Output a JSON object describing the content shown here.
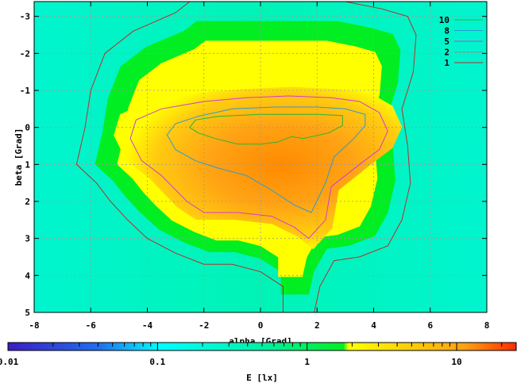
{
  "chart_data": {
    "type": "heatmap",
    "title": "",
    "xlabel": "alpha [Grad]",
    "ylabel": "beta [Grad]",
    "colorbar_label": "E [lx]",
    "xlim": [
      -8,
      8
    ],
    "ylim": [
      -3.4,
      5
    ],
    "y_inverted": true,
    "grid": true,
    "legend_placement": "top-right",
    "x_ticks": [
      "-8",
      "-6",
      "-4",
      "-2",
      "0",
      "2",
      "4",
      "6",
      "8"
    ],
    "y_ticks": [
      "-3",
      "-2",
      "-1",
      "0",
      "1",
      "2",
      "3",
      "4",
      "5"
    ],
    "colorbar_ticks": [
      "0.01",
      "0.1",
      "1",
      "10"
    ],
    "colorbar_range": [
      0.01,
      25
    ],
    "colorbar_log_scale": true,
    "palette": [
      "#3c1dc2",
      "#1f6ff0",
      "#00ffff",
      "#00f0a6",
      "#00ee22",
      "#ffff00",
      "#ffa010",
      "#ff2a00"
    ],
    "contours": [
      {
        "level": "10",
        "color": "#22b833",
        "points": [
          [
            -2.5,
            0
          ],
          [
            -2.3,
            -0.2
          ],
          [
            -1.5,
            -0.3
          ],
          [
            0,
            -0.35
          ],
          [
            1,
            -0.35
          ],
          [
            2,
            -0.35
          ],
          [
            2.9,
            -0.32
          ],
          [
            2.9,
            -0.05
          ],
          [
            2.4,
            0.15
          ],
          [
            1.5,
            0.3
          ],
          [
            1.1,
            0.25
          ],
          [
            0.6,
            0.4
          ],
          [
            0,
            0.45
          ],
          [
            -0.8,
            0.45
          ],
          [
            -1.6,
            0.3
          ],
          [
            -2.2,
            0.15
          ],
          [
            -2.5,
            0
          ]
        ]
      },
      {
        "level": "8",
        "color": "#2a9bd1",
        "points": [
          [
            -3.3,
            0.2
          ],
          [
            -3,
            -0.1
          ],
          [
            -2.2,
            -0.3
          ],
          [
            -1,
            -0.5
          ],
          [
            0.5,
            -0.55
          ],
          [
            2,
            -0.55
          ],
          [
            3,
            -0.5
          ],
          [
            3.7,
            -0.35
          ],
          [
            3.7,
            -0.05
          ],
          [
            3.3,
            0.3
          ],
          [
            2.6,
            0.8
          ],
          [
            2.3,
            1.5
          ],
          [
            1.8,
            2.3
          ],
          [
            1.2,
            2.1
          ],
          [
            0.4,
            1.7
          ],
          [
            -0.5,
            1.3
          ],
          [
            -1.5,
            1.1
          ],
          [
            -2.3,
            0.9
          ],
          [
            -3,
            0.6
          ],
          [
            -3.3,
            0.2
          ]
        ]
      },
      {
        "level": "5",
        "color": "#d23ad2",
        "points": [
          [
            -4.6,
            0.3
          ],
          [
            -4.4,
            -0.2
          ],
          [
            -3.5,
            -0.5
          ],
          [
            -2,
            -0.7
          ],
          [
            -0.5,
            -0.8
          ],
          [
            1,
            -0.85
          ],
          [
            2.5,
            -0.8
          ],
          [
            3.5,
            -0.7
          ],
          [
            4.2,
            -0.4
          ],
          [
            4.5,
            0.1
          ],
          [
            4.2,
            0.6
          ],
          [
            3.5,
            1
          ],
          [
            2.5,
            1.6
          ],
          [
            2.3,
            2.5
          ],
          [
            1.7,
            3
          ],
          [
            1.2,
            2.7
          ],
          [
            0.4,
            2.4
          ],
          [
            -0.8,
            2.3
          ],
          [
            -2,
            2.3
          ],
          [
            -2.6,
            2
          ],
          [
            -3.5,
            1.3
          ],
          [
            -4.2,
            0.9
          ],
          [
            -4.6,
            0.3
          ]
        ]
      },
      {
        "level": "2",
        "color": "#b08080",
        "points": []
      },
      {
        "level": "1",
        "color": "#b03030",
        "points": [
          [
            -6.5,
            1
          ],
          [
            -6.2,
            0
          ],
          [
            -6,
            -1
          ],
          [
            -5.5,
            -2
          ],
          [
            -4.5,
            -2.6
          ],
          [
            -3,
            -3.1
          ],
          [
            -2.5,
            -3.4
          ],
          [
            3,
            -3.4
          ],
          [
            4.3,
            -3.2
          ],
          [
            5.2,
            -3
          ],
          [
            5.5,
            -2.5
          ],
          [
            5.4,
            -1.5
          ],
          [
            5,
            -0.5
          ],
          [
            5.2,
            0.5
          ],
          [
            5.3,
            1.5
          ],
          [
            5,
            2.5
          ],
          [
            4.5,
            3.2
          ],
          [
            3.5,
            3.5
          ],
          [
            2.6,
            3.6
          ],
          [
            2.1,
            4.3
          ],
          [
            1.9,
            5
          ],
          [
            0.8,
            5
          ],
          [
            0.8,
            4.3
          ],
          [
            0,
            3.9
          ],
          [
            -1,
            3.7
          ],
          [
            -2,
            3.7
          ],
          [
            -3,
            3.4
          ],
          [
            -4,
            3
          ],
          [
            -4.7,
            2.5
          ],
          [
            -5.3,
            2
          ],
          [
            -5.8,
            1.5
          ],
          [
            -6.5,
            1
          ]
        ]
      }
    ]
  }
}
